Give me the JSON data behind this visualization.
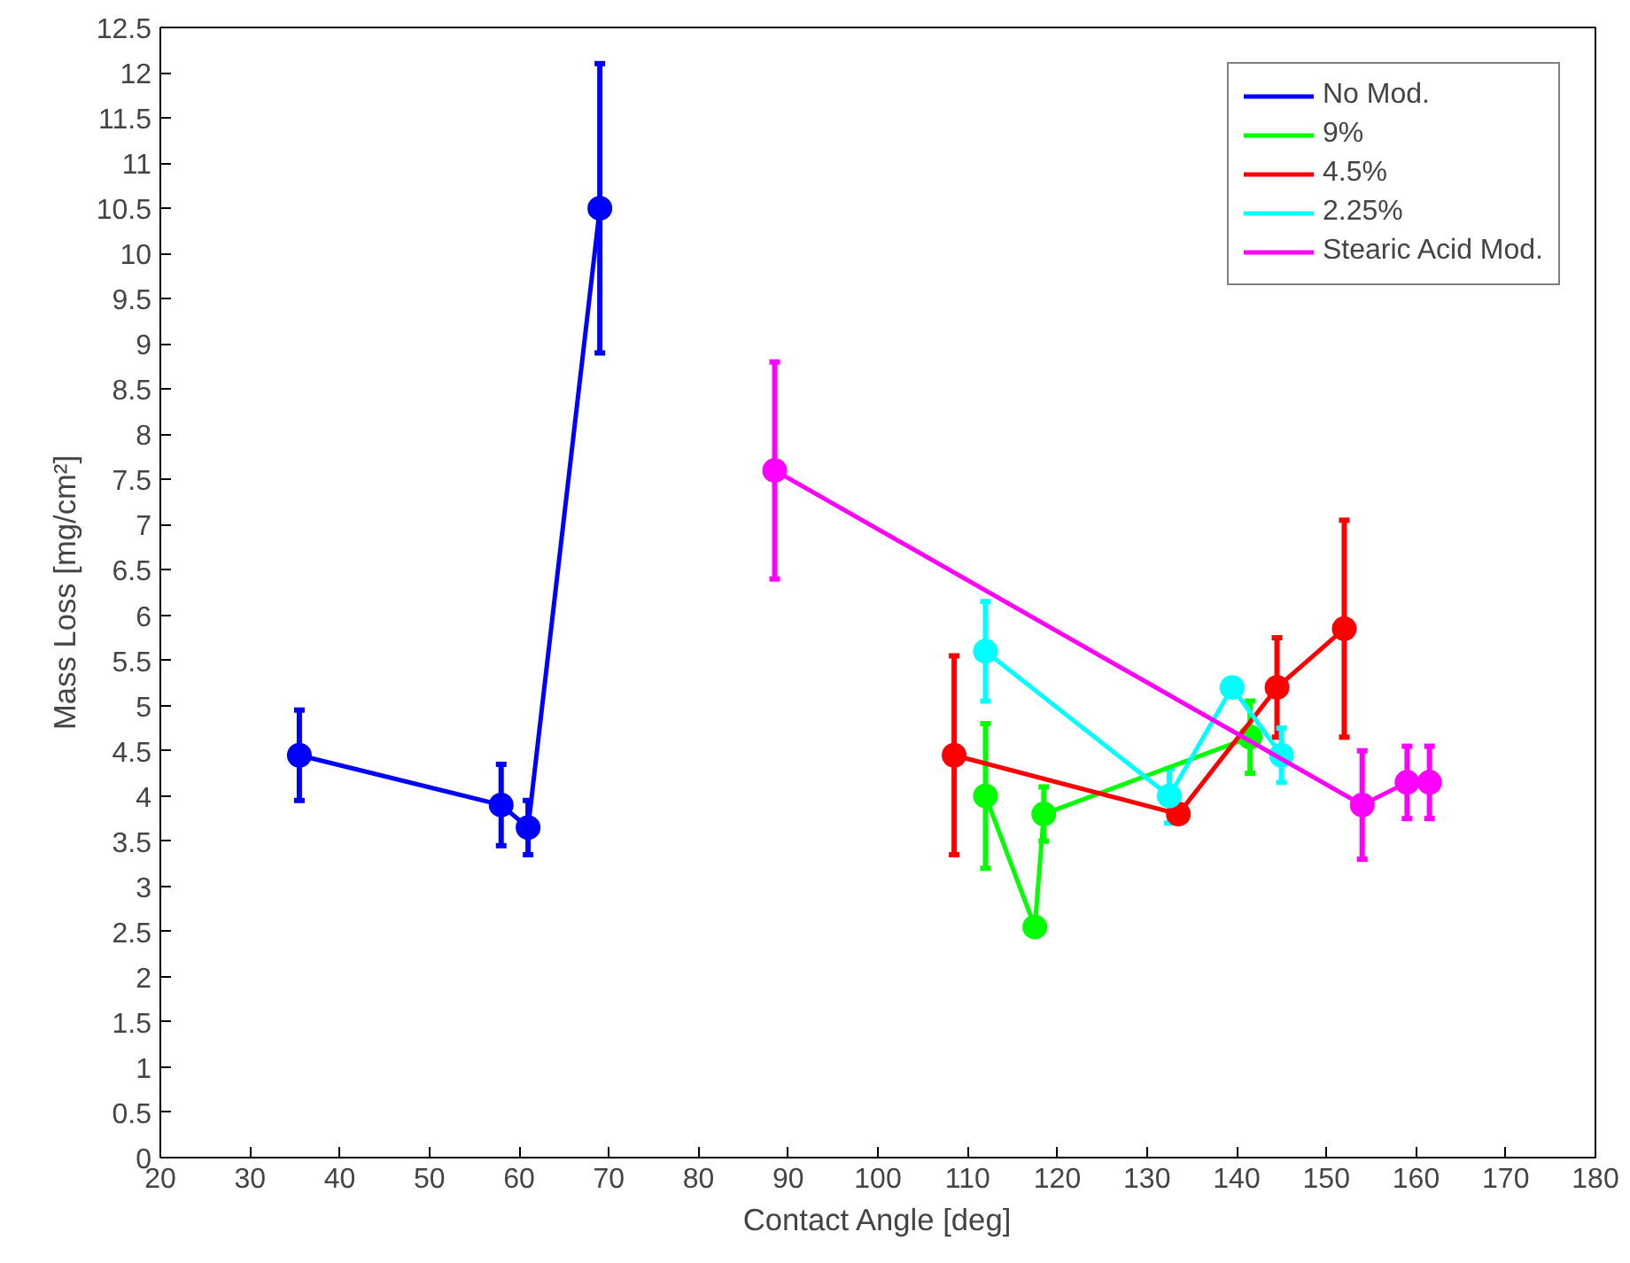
{
  "chart_data": {
    "type": "line",
    "xlabel": "Contact Angle [deg]",
    "ylabel": "Mass Loss [mg/cm²]",
    "xlim": [
      20,
      180
    ],
    "xticks": [
      20,
      30,
      40,
      50,
      60,
      70,
      80,
      90,
      100,
      110,
      120,
      130,
      140,
      150,
      160,
      170,
      180
    ],
    "ylim": [
      0,
      12.5
    ],
    "yticks": [
      0,
      0.5,
      1,
      1.5,
      2,
      2.5,
      3,
      3.5,
      4,
      4.5,
      5,
      5.5,
      6,
      6.5,
      7,
      7.5,
      8,
      8.5,
      9,
      9.5,
      10,
      10.5,
      11,
      11.5,
      12,
      12.5
    ],
    "grid": false,
    "legend": "top right",
    "marker": "circle",
    "line_style": "solid",
    "series": [
      {
        "name": "No Mod.",
        "color": "#0000ff",
        "x": [
          35.5,
          58,
          61,
          69
        ],
        "values": [
          4.45,
          3.9,
          3.65,
          10.5
        ],
        "errors": [
          0.5,
          0.45,
          0.3,
          1.6
        ]
      },
      {
        "name": "9%",
        "color": "#00ff00",
        "x": [
          112,
          117.5,
          118.5,
          141.5
        ],
        "values": [
          4.0,
          2.55,
          3.8,
          4.65
        ],
        "errors": [
          0.8,
          0.05,
          0.3,
          0.4
        ]
      },
      {
        "name": "4.5%",
        "color": "#ff0000",
        "x": [
          108.5,
          133.5,
          144.5,
          152
        ],
        "values": [
          4.45,
          3.8,
          5.2,
          5.85
        ],
        "errors": [
          1.1,
          0.05,
          0.55,
          1.2
        ]
      },
      {
        "name": "2.25%",
        "color": "#00ffff",
        "x": [
          112,
          132.5,
          139.5,
          145
        ],
        "values": [
          5.6,
          4.0,
          5.2,
          4.45
        ],
        "errors": [
          0.55,
          0.3,
          0.05,
          0.3
        ]
      },
      {
        "name": "Stearic Acid Mod.",
        "color": "#ff00ff",
        "x": [
          88.5,
          154,
          159,
          161.5
        ],
        "values": [
          7.6,
          3.9,
          4.15,
          4.15
        ],
        "errors": [
          1.2,
          0.6,
          0.4,
          0.4
        ]
      }
    ]
  }
}
